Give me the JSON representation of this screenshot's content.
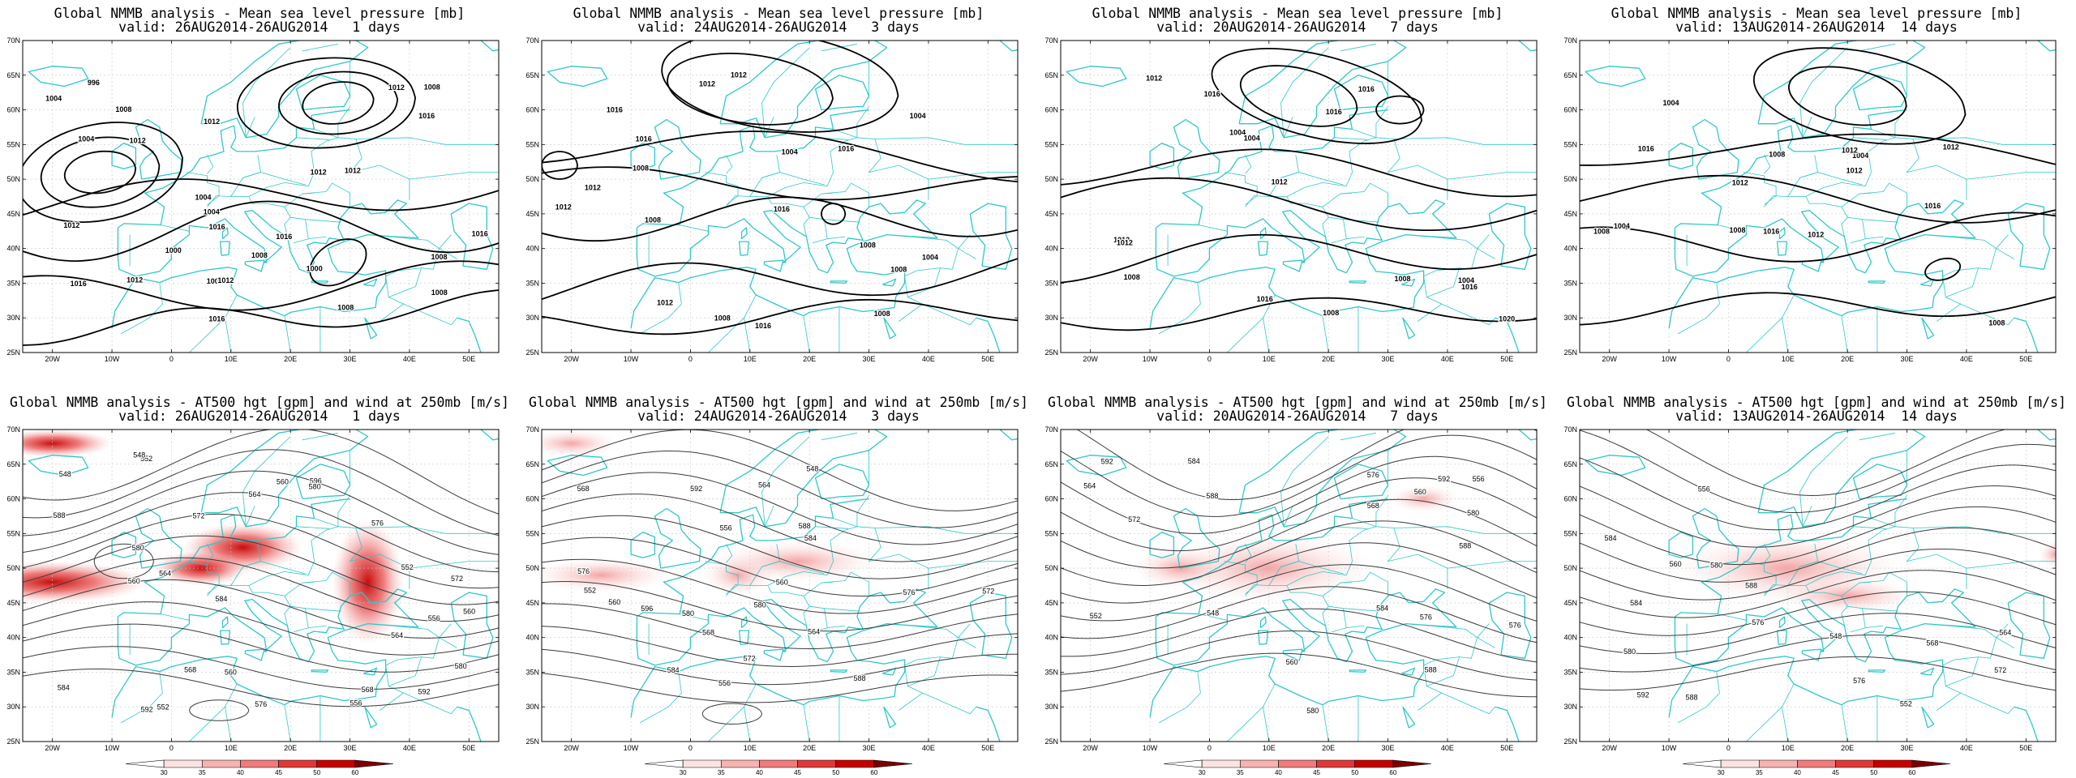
{
  "panels": [
    {
      "title": "Global NMMB analysis - Mean sea level pressure [mb]",
      "valid": "valid: 26AUG2014-26AUG2014   1 days",
      "type": "mslp",
      "labels": [
        "1008",
        "1012",
        "1008",
        "1004",
        "1000",
        "996",
        "1004",
        "1008",
        "1004",
        "1000",
        "1004",
        "1008",
        "1012",
        "1016",
        "1012",
        "1016",
        "1016",
        "1016",
        "1012",
        "1008",
        "1004",
        "1012",
        "1016",
        "1012",
        "1008",
        "1012",
        "1012",
        "1016"
      ]
    },
    {
      "title": "Global NMMB analysis - Mean sea level pressure [mb]",
      "valid": "valid: 24AUG2014-26AUG2014   3 days",
      "type": "mslp",
      "labels": [
        "1016",
        "1008",
        "1012",
        "1008",
        "1004",
        "1008",
        "1008",
        "1012",
        "1004",
        "1008",
        "1012",
        "1016",
        "1016",
        "1016",
        "1012",
        "1008",
        "1004",
        "1012",
        "1016",
        "1012"
      ]
    },
    {
      "title": "Global NMMB analysis - Mean sea level pressure [mb]",
      "valid": "valid: 20AUG2014-26AUG2014   7 days",
      "type": "mslp",
      "labels": [
        "1004",
        "1004",
        "1008",
        "1012",
        "1016",
        "1016",
        "1020",
        "1016",
        "1016",
        "1012",
        "1008",
        "1008",
        "1004",
        "1012",
        "1012",
        "1016"
      ]
    },
    {
      "title": "Global NMMB analysis - Mean sea level pressure [mb]",
      "valid": "valid: 13AUG2014-26AUG2014  14 days",
      "type": "mslp",
      "labels": [
        "1004",
        "1004",
        "1008",
        "1012",
        "1012",
        "1016",
        "1016",
        "1012",
        "1008",
        "1012",
        "1004",
        "1008",
        "1016",
        "1008",
        "1012"
      ]
    },
    {
      "title": "Global NMMB analysis - AT500 hgt [gpm] and wind at 250mb [m/s]",
      "valid": "valid: 26AUG2014-26AUG2014   1 days",
      "type": "hgt",
      "labels": [
        "552",
        "556",
        "552",
        "560",
        "548",
        "564",
        "560",
        "552",
        "548",
        "556",
        "560",
        "564",
        "568",
        "572",
        "576",
        "580",
        "584",
        "588",
        "592",
        "596",
        "592",
        "580",
        "584",
        "560",
        "564",
        "568",
        "572",
        "576",
        "580"
      ]
    },
    {
      "title": "Global NMMB analysis - AT500 hgt [gpm] and wind at 250mb [m/s]",
      "valid": "valid: 24AUG2014-26AUG2014   3 days",
      "type": "hgt",
      "labels": [
        "552",
        "556",
        "548",
        "556",
        "560",
        "564",
        "568",
        "572",
        "576",
        "580",
        "584",
        "588",
        "584",
        "592",
        "596",
        "560",
        "564",
        "568",
        "572",
        "576",
        "580",
        "588"
      ]
    },
    {
      "title": "Global NMMB analysis - AT500 hgt [gpm] and wind at 250mb [m/s]",
      "valid": "valid: 20AUG2014-26AUG2014   7 days",
      "type": "hgt",
      "labels": [
        "548",
        "552",
        "556",
        "560",
        "564",
        "568",
        "572",
        "576",
        "580",
        "584",
        "588",
        "592",
        "588",
        "584",
        "580",
        "576",
        "588",
        "592",
        "576",
        "560"
      ]
    },
    {
      "title": "Global NMMB analysis - AT500 hgt [gpm] and wind at 250mb [m/s]",
      "valid": "valid: 13AUG2014-26AUG2014  14 days",
      "type": "hgt",
      "labels": [
        "548",
        "552",
        "556",
        "560",
        "564",
        "568",
        "572",
        "576",
        "580",
        "584",
        "588",
        "592",
        "584",
        "588",
        "576",
        "580"
      ]
    }
  ],
  "axes": {
    "lat_ticks": [
      "70N",
      "65N",
      "60N",
      "55N",
      "50N",
      "45N",
      "40N",
      "35N",
      "30N",
      "25N"
    ],
    "lon_ticks": [
      "20W",
      "10W",
      "0",
      "10E",
      "20E",
      "30E",
      "40E",
      "50E"
    ]
  },
  "legend": {
    "values": [
      "30",
      "35",
      "40",
      "45",
      "50",
      "60"
    ],
    "colors": [
      "#ffffff",
      "#fce3e3",
      "#f7b2b2",
      "#f07b7b",
      "#e03838",
      "#c40000",
      "#7a0000"
    ]
  },
  "colors": {
    "coast": "#2ec8c8",
    "contour": "#000000",
    "height_contour": "#3a3a3a",
    "grid": "#c8c8c8"
  }
}
